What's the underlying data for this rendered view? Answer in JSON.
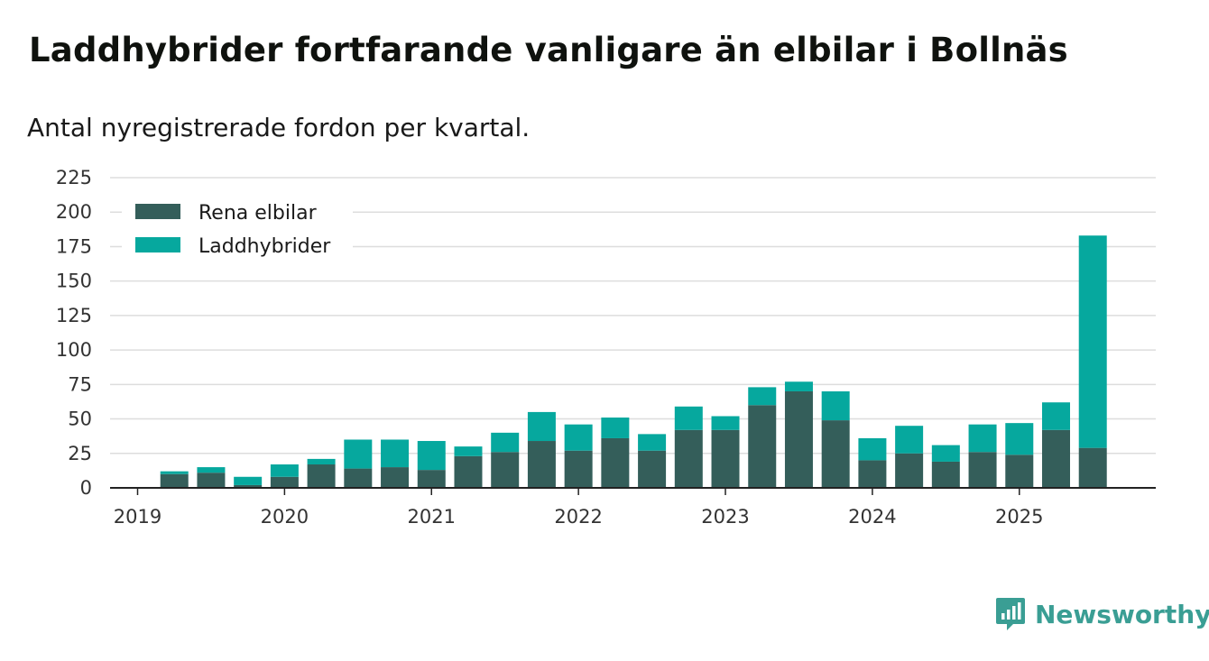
{
  "header": {
    "title": "Laddhybrider fortfarande vanligare än elbilar i Bollnäs",
    "subtitle": "Antal nyregistrerade fordon per kvartal."
  },
  "brand": {
    "name": "Newsworthy",
    "color": "#3a9e94"
  },
  "colors": {
    "elbilar": "#345e5a",
    "laddhybrider": "#06a89e",
    "grid": "#dddddd",
    "axis": "#222222"
  },
  "chart_data": {
    "type": "bar",
    "stacked": true,
    "title": "Laddhybrider fortfarande vanligare än elbilar i Bollnäs",
    "subtitle": "Antal nyregistrerade fordon per kvartal.",
    "xlabel": "",
    "ylabel": "",
    "ylim": [
      0,
      225
    ],
    "yticks": [
      0,
      25,
      50,
      75,
      100,
      125,
      150,
      175,
      200,
      225
    ],
    "xtick_labels": [
      "2019",
      "2020",
      "2021",
      "2022",
      "2023",
      "2024",
      "2025"
    ],
    "grid": true,
    "legend_position": "top-left",
    "categories": [
      "2019 Q1",
      "2019 Q2",
      "2019 Q3",
      "2019 Q4",
      "2020 Q1",
      "2020 Q2",
      "2020 Q3",
      "2020 Q4",
      "2021 Q1",
      "2021 Q2",
      "2021 Q3",
      "2021 Q4",
      "2022 Q1",
      "2022 Q2",
      "2022 Q3",
      "2022 Q4",
      "2023 Q1",
      "2023 Q2",
      "2023 Q3",
      "2023 Q4",
      "2024 Q1",
      "2024 Q2",
      "2024 Q3",
      "2024 Q4",
      "2025 Q1",
      "2025 Q2",
      "2025 Q3"
    ],
    "series": [
      {
        "name": "Rena elbilar",
        "values": [
          0,
          10,
          11,
          2,
          8,
          17,
          14,
          15,
          13,
          23,
          26,
          34,
          27,
          36,
          27,
          42,
          42,
          60,
          70,
          49,
          20,
          25,
          19,
          26,
          24,
          42,
          29
        ]
      },
      {
        "name": "Laddhybrider",
        "values": [
          0,
          2,
          4,
          6,
          9,
          4,
          21,
          20,
          21,
          7,
          14,
          21,
          19,
          15,
          12,
          17,
          10,
          13,
          7,
          21,
          16,
          20,
          12,
          20,
          23,
          20,
          154
        ]
      }
    ]
  }
}
